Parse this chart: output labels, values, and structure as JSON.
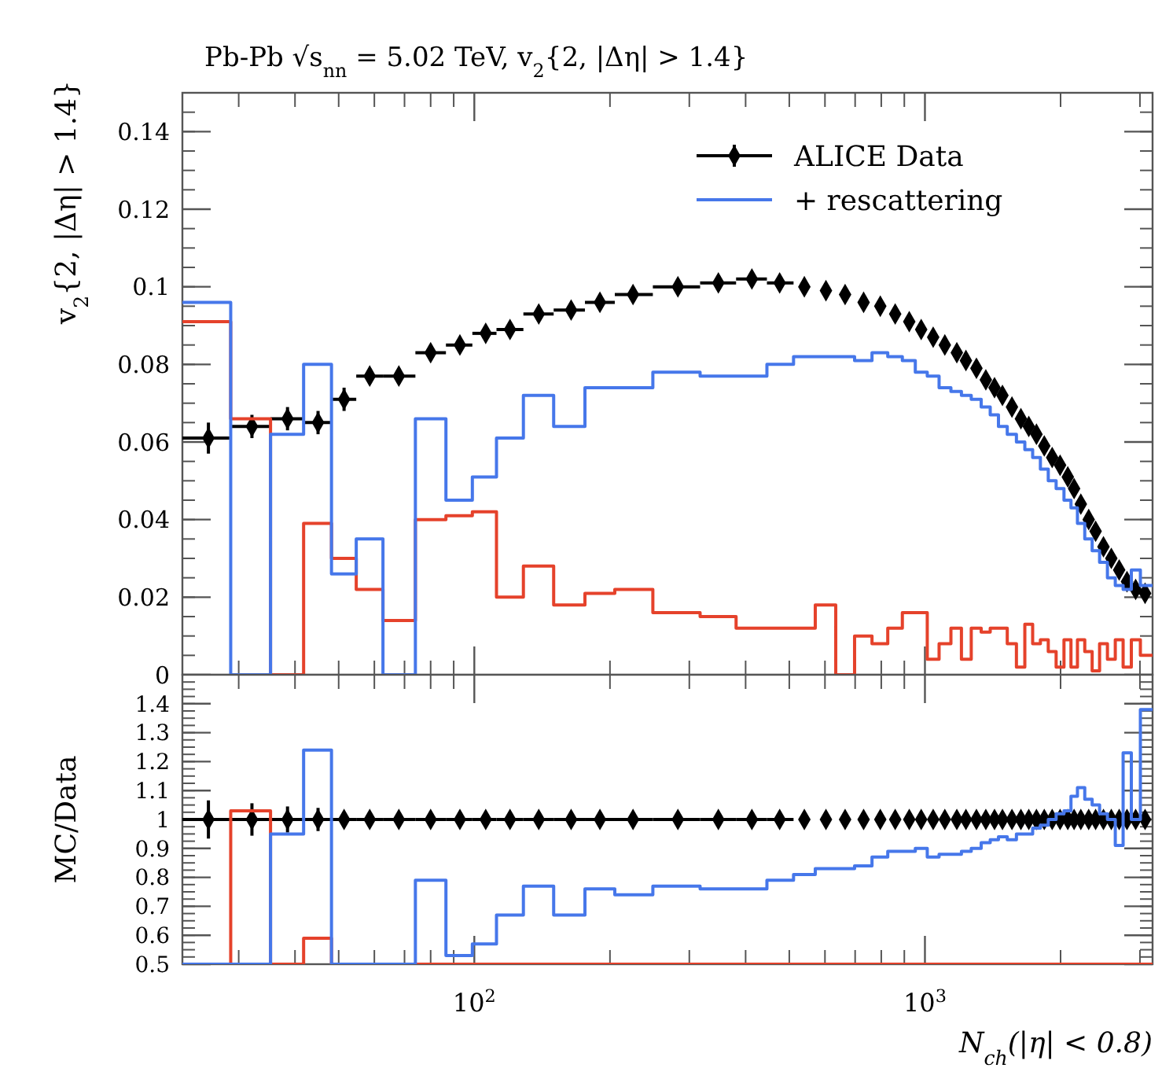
{
  "chart_data": [
    {
      "type": "histogram",
      "title": "Pb-Pb √s$_{nn}$ = 5.02 TeV, v$_{2}${2, |Δη| > 1.4}",
      "ylabel": "v$_{2}${2, |Δη| > 1.4}",
      "log": "x",
      "xlim": [
        22.5,
        3200
      ],
      "xticks": [
        100,
        1000
      ],
      "ylim": [
        0,
        0.15
      ],
      "yticks": [
        0,
        0.02,
        0.04,
        0.06,
        0.08,
        0.1,
        0.12,
        0.14
      ],
      "tick_labels": "y",
      "legend": "top right",
      "marker": "diamond",
      "bins": [
        22.5,
        28.8,
        35.3,
        41.8,
        48.2,
        54.7,
        62.7,
        74,
        86.5,
        99,
        112,
        128.5,
        150,
        176,
        205,
        249,
        317,
        381,
        446,
        511,
        571,
        634,
        698,
        763,
        827,
        891,
        952,
        1012,
        1075,
        1142,
        1205,
        1267,
        1333,
        1396,
        1456,
        1523,
        1596,
        1666,
        1734,
        1804,
        1878,
        1955,
        2035,
        2109,
        2180,
        2263,
        2350,
        2441,
        2541,
        2645,
        2753,
        2871,
        3007,
        3200
      ],
      "series": [
        {
          "name": "ALICE Data",
          "type": "scatter",
          "color": "#000000",
          "x": [
            25.7,
            32.1,
            38.5,
            45,
            51.4,
            58.6,
            68,
            80,
            92.9,
            106,
            120,
            139,
            164,
            190,
            225,
            283,
            348,
            413,
            476,
            540,
            603,
            665,
            731,
            796,
            859,
            923,
            981,
            1043,
            1107,
            1177,
            1233,
            1301,
            1365,
            1427,
            1486,
            1560,
            1633,
            1700,
            1768,
            1840,
            1916,
            1995,
            2075,
            2143,
            2218,
            2309,
            2392,
            2490,
            2592,
            2698,
            2808,
            2935,
            3080
          ],
          "values": [
            0.061,
            0.064,
            0.066,
            0.065,
            0.071,
            0.077,
            0.077,
            0.083,
            0.085,
            0.088,
            0.089,
            0.093,
            0.094,
            0.096,
            0.098,
            0.1,
            0.101,
            0.102,
            0.101,
            0.1,
            0.099,
            0.098,
            0.096,
            0.095,
            0.093,
            0.091,
            0.089,
            0.087,
            0.085,
            0.083,
            0.081,
            0.079,
            0.076,
            0.074,
            0.072,
            0.069,
            0.066,
            0.064,
            0.062,
            0.059,
            0.056,
            0.054,
            0.051,
            0.048,
            0.044,
            0.04,
            0.037,
            0.033,
            0.03,
            0.027,
            0.024,
            0.022,
            0.021
          ],
          "errors": [
            0.004,
            0.003,
            0.003,
            0.003,
            0.003,
            0.002,
            0.002,
            0.002,
            0.002,
            null,
            null,
            null,
            null,
            null,
            null,
            null,
            null,
            null,
            null,
            null,
            null,
            null,
            null,
            null,
            null,
            null,
            null,
            null,
            null,
            null,
            null,
            null,
            null,
            null,
            null,
            null,
            null,
            null,
            null,
            null,
            null,
            null,
            null,
            null,
            null,
            null,
            null,
            null,
            null,
            null,
            null,
            null,
            null
          ],
          "xerrors": [
            [
              22.5,
              28.8
            ],
            [
              28.8,
              35.3
            ],
            [
              35.3,
              41.8
            ],
            [
              41.8,
              48.2
            ],
            [
              48.2,
              54.7
            ],
            [
              54.7,
              62.7
            ],
            [
              62.7,
              74
            ],
            [
              74,
              86.5
            ],
            [
              86.5,
              99
            ],
            [
              99,
              112
            ],
            [
              112,
              128.5
            ],
            [
              128.5,
              150
            ],
            [
              150,
              176
            ],
            [
              176,
              205
            ],
            [
              205,
              249
            ],
            [
              249,
              317
            ],
            [
              317,
              381
            ],
            [
              381,
              446
            ],
            [
              446,
              511
            ],
            null,
            null,
            null,
            null,
            null,
            null,
            null,
            null,
            null,
            null,
            null,
            null,
            null,
            null,
            null,
            null,
            null,
            null,
            null,
            null,
            null,
            null,
            null,
            null,
            null,
            null,
            null,
            null,
            null,
            null,
            null,
            null,
            null,
            null
          ]
        },
        {
          "color": "#e5422b",
          "values": [
            0.091,
            0.066,
            0,
            0.039,
            0.03,
            0.022,
            0.014,
            0.04,
            0.041,
            0.042,
            0.02,
            0.028,
            0.018,
            0.021,
            0.022,
            0.016,
            0.015,
            0.012,
            0.012,
            0.012,
            0.018,
            0,
            0.01,
            0.008,
            0.012,
            0.016,
            0.016,
            0.004,
            0.008,
            0.012,
            0.004,
            0.012,
            0.011,
            0.012,
            0.012,
            0.008,
            0.002,
            0.013,
            0.008,
            0.009,
            0.006,
            0.002,
            0.009,
            0.002,
            0.009,
            0.006,
            0.001,
            0.008,
            0.004,
            0.009,
            0.002,
            0.009,
            0.005
          ]
        },
        {
          "name": "+ rescattering",
          "color": "#4677ea",
          "values": [
            0.096,
            0,
            0.062,
            0.08,
            0.026,
            0.035,
            0,
            0.066,
            0.045,
            0.051,
            0.061,
            0.072,
            0.064,
            0.074,
            0.074,
            0.078,
            0.077,
            0.077,
            0.08,
            0.082,
            0.082,
            0.082,
            0.081,
            0.083,
            0.082,
            0.081,
            0.078,
            0.077,
            0.074,
            0.073,
            0.072,
            0.071,
            0.069,
            0.067,
            0.064,
            0.062,
            0.06,
            0.058,
            0.056,
            0.053,
            0.05,
            0.048,
            0.045,
            0.043,
            0.039,
            0.035,
            0.032,
            0.029,
            0.025,
            0.023,
            0.022,
            0.027,
            0.023
          ]
        }
      ]
    },
    {
      "type": "histogram",
      "xlabel": "N$_{ch}$(|η| < 0.8)",
      "ylabel": "MC/Data",
      "log": "x",
      "xlim": [
        22.5,
        3200
      ],
      "xticks": [
        {
          "value": 100,
          "label": "10$^{2}$"
        },
        {
          "value": 1000,
          "label": "10$^{3}$"
        }
      ],
      "ylim": [
        0.5,
        1.5
      ],
      "yticks": [
        0.5,
        0.6,
        0.7,
        0.8,
        0.9,
        1,
        1.1,
        1.2,
        1.3,
        1.4
      ],
      "marker": "diamond",
      "bins": [
        22.5,
        28.8,
        35.3,
        41.8,
        48.2,
        54.7,
        62.7,
        74,
        86.5,
        99,
        112,
        128.5,
        150,
        176,
        205,
        249,
        317,
        381,
        446,
        511,
        571,
        634,
        698,
        763,
        827,
        891,
        952,
        1012,
        1075,
        1142,
        1205,
        1267,
        1333,
        1396,
        1456,
        1523,
        1596,
        1666,
        1734,
        1804,
        1878,
        1955,
        2035,
        2109,
        2180,
        2263,
        2350,
        2441,
        2541,
        2645,
        2753,
        2871,
        3007,
        3200
      ],
      "series": [
        {
          "type": "scatter",
          "color": "#000000",
          "x": [
            25.7,
            32.1,
            38.5,
            45,
            51.4,
            58.6,
            68,
            80,
            92.9,
            106,
            120,
            139,
            164,
            190,
            225,
            283,
            348,
            413,
            476,
            540,
            603,
            665,
            731,
            796,
            859,
            923,
            981,
            1043,
            1107,
            1177,
            1233,
            1301,
            1365,
            1427,
            1486,
            1560,
            1633,
            1700,
            1768,
            1840,
            1916,
            1995,
            2075,
            2143,
            2218,
            2309,
            2392,
            2490,
            2592,
            2698,
            2808,
            2935,
            3080
          ],
          "values": [
            1,
            1,
            1,
            1,
            1,
            1,
            1,
            1,
            1,
            1,
            1,
            1,
            1,
            1,
            1,
            1,
            1,
            1,
            1,
            1,
            1,
            1,
            1,
            1,
            1,
            1,
            1,
            1,
            1,
            1,
            1,
            1,
            1,
            1,
            1,
            1,
            1,
            1,
            1,
            1,
            1,
            1,
            1,
            1,
            1,
            1,
            1,
            1,
            1,
            1,
            1,
            1,
            1
          ],
          "errors": [
            0.066,
            0.056,
            0.045,
            0.04,
            null,
            null,
            null,
            null,
            null,
            null,
            null,
            null,
            null,
            null,
            null,
            null,
            null,
            null,
            null,
            null,
            null,
            null,
            null,
            null,
            null,
            null,
            null,
            null,
            null,
            null,
            null,
            null,
            null,
            null,
            null,
            null,
            null,
            null,
            null,
            null,
            null,
            null,
            null,
            null,
            null,
            null,
            null,
            null,
            null,
            null,
            null,
            null,
            null
          ],
          "xerrors": [
            [
              22.5,
              28.8
            ],
            [
              28.8,
              35.3
            ],
            [
              35.3,
              41.8
            ],
            [
              41.8,
              48.2
            ],
            [
              48.2,
              54.7
            ],
            [
              54.7,
              62.7
            ],
            [
              62.7,
              74
            ],
            [
              74,
              86.5
            ],
            [
              86.5,
              99
            ],
            [
              99,
              112
            ],
            [
              112,
              128.5
            ],
            [
              128.5,
              150
            ],
            [
              150,
              176
            ],
            [
              176,
              205
            ],
            [
              205,
              249
            ],
            [
              249,
              317
            ],
            [
              317,
              381
            ],
            [
              381,
              446
            ],
            [
              446,
              511
            ],
            null,
            null,
            null,
            null,
            null,
            null,
            null,
            null,
            null,
            null,
            null,
            null,
            null,
            null,
            null,
            null,
            null,
            null,
            null,
            null,
            null,
            null,
            null,
            null,
            null,
            null,
            null,
            null,
            null,
            null,
            null,
            null,
            null,
            null
          ]
        },
        {
          "color": "#e5422b",
          "values": [
            null,
            1.03,
            null,
            0.59,
            null,
            null,
            null,
            null,
            null,
            null,
            null,
            null,
            null,
            null,
            null,
            null,
            null,
            null,
            null,
            null,
            null,
            null,
            null,
            null,
            null,
            null,
            null,
            null,
            null,
            null,
            null,
            null,
            null,
            null,
            null,
            null,
            null,
            null,
            null,
            null,
            null,
            null,
            null,
            null,
            null,
            null,
            null,
            null,
            null,
            null,
            null,
            null,
            null
          ]
        },
        {
          "color": "#4677ea",
          "values": [
            null,
            null,
            0.95,
            1.24,
            null,
            null,
            null,
            0.79,
            0.53,
            0.57,
            0.67,
            0.77,
            0.67,
            0.76,
            0.74,
            0.77,
            0.76,
            0.76,
            0.79,
            0.81,
            0.83,
            0.83,
            0.84,
            0.87,
            0.89,
            0.89,
            0.9,
            0.87,
            0.88,
            0.88,
            0.89,
            0.9,
            0.92,
            0.93,
            0.94,
            0.93,
            0.95,
            0.95,
            0.97,
            0.98,
            1.0,
            1.02,
            1.03,
            1.08,
            1.11,
            1.07,
            1.05,
            1.02,
            1.0,
            0.91,
            1.23,
            1.0,
            1.38
          ]
        }
      ]
    }
  ]
}
